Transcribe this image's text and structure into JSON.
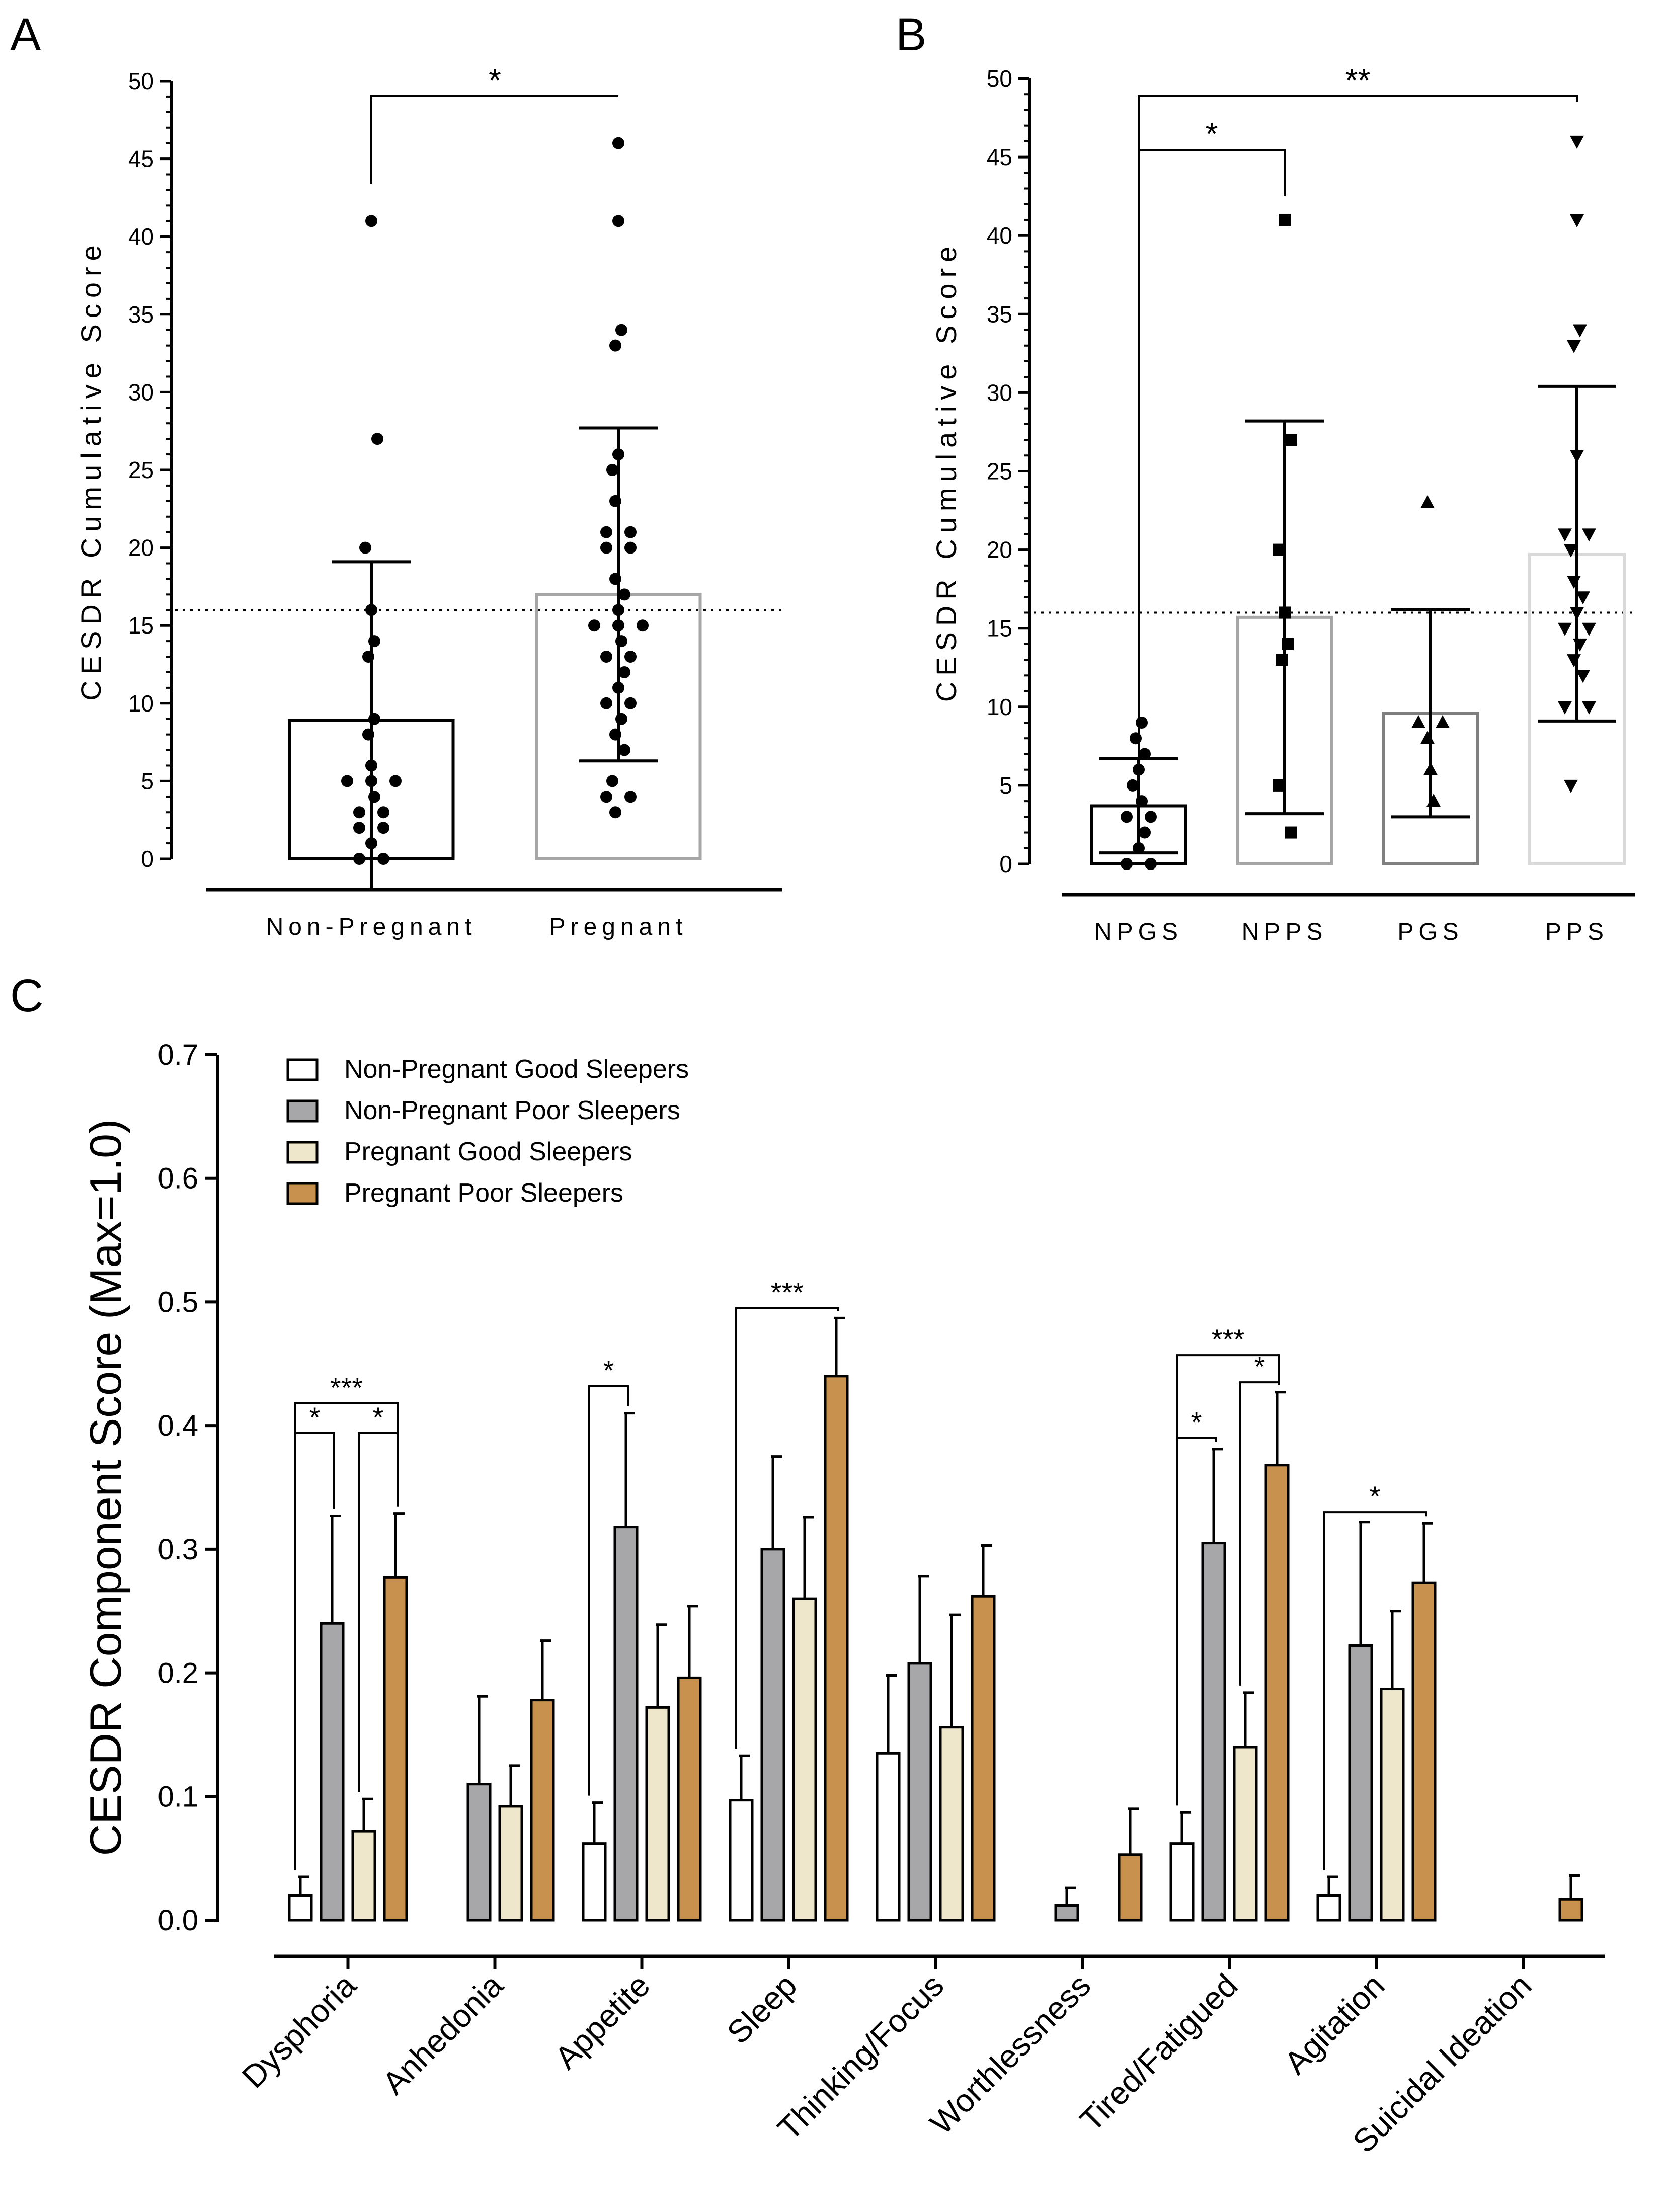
{
  "chart_data": [
    {
      "panel": "A",
      "type": "scatter",
      "title": "",
      "ylabel": "CESDR Cumulative Score",
      "xlabel": "",
      "ylim": [
        0,
        50
      ],
      "yticks": [
        0,
        5,
        10,
        15,
        20,
        25,
        30,
        35,
        40,
        45,
        50
      ],
      "threshold": 16,
      "categories": [
        "Non-Pregnant",
        "Pregnant"
      ],
      "groups": [
        {
          "name": "Non-Pregnant",
          "mean": 8.9,
          "sd_upper": 19.1,
          "sd_lower": -1.3,
          "bar_color": "#000000",
          "points": [
            41,
            27,
            20,
            16,
            14,
            13,
            9,
            8,
            6,
            5,
            5,
            5,
            4,
            3,
            3,
            2,
            2,
            1,
            0,
            0
          ]
        },
        {
          "name": "Pregnant",
          "mean": 17.0,
          "sd_upper": 27.7,
          "sd_lower": 6.3,
          "bar_color": "#a6a6a6",
          "points": [
            46,
            41,
            34,
            33,
            26,
            25,
            23,
            21,
            21,
            20,
            20,
            18,
            17,
            16,
            15,
            15,
            15,
            14,
            13,
            13,
            12,
            11,
            10,
            10,
            9,
            8,
            7,
            5,
            4,
            4,
            3
          ]
        }
      ],
      "significance": [
        {
          "from": 0,
          "to": 1,
          "label": "*"
        }
      ]
    },
    {
      "panel": "B",
      "type": "scatter",
      "title": "",
      "ylabel": "CESDR Cumulative Score",
      "xlabel": "",
      "ylim": [
        0,
        50
      ],
      "yticks": [
        0,
        5,
        10,
        15,
        20,
        25,
        30,
        35,
        40,
        45,
        50
      ],
      "threshold": 16,
      "categories": [
        "NPGS",
        "NPPS",
        "PGS",
        "PPS"
      ],
      "groups": [
        {
          "name": "NPGS",
          "mean": 3.7,
          "sd_upper": 6.7,
          "sd_lower": 0.7,
          "bar_color": "#000000",
          "marker": "circle",
          "points": [
            9,
            8,
            7,
            6,
            5,
            4,
            3,
            3,
            2,
            1,
            0,
            0
          ]
        },
        {
          "name": "NPPS",
          "mean": 15.7,
          "sd_upper": 28.2,
          "sd_lower": 3.2,
          "bar_color": "#a6a6a6",
          "marker": "square",
          "points": [
            41,
            27,
            20,
            16,
            14,
            13,
            5,
            2
          ]
        },
        {
          "name": "PGS",
          "mean": 9.6,
          "sd_upper": 16.2,
          "sd_lower": 3.0,
          "bar_color": "#7f7f7f",
          "marker": "triangle-up",
          "points": [
            23,
            9,
            9,
            8,
            6,
            4
          ]
        },
        {
          "name": "PPS",
          "mean": 19.7,
          "sd_upper": 30.4,
          "sd_lower": 9.1,
          "bar_color": "#d9d9d9",
          "marker": "triangle-down",
          "points": [
            46,
            41,
            34,
            33,
            26,
            21,
            21,
            20,
            18,
            17,
            16,
            15,
            15,
            14,
            13,
            12,
            10,
            10,
            5
          ]
        }
      ],
      "significance": [
        {
          "from": 0,
          "to": 1,
          "label": "*"
        },
        {
          "from": 0,
          "to": 3,
          "label": "**"
        }
      ]
    },
    {
      "panel": "C",
      "type": "bar",
      "title": "",
      "ylabel": "CESDR Component Score (Max=1.0)",
      "xlabel": "",
      "ylim": [
        0,
        0.7
      ],
      "yticks": [
        "0.0",
        "0.1",
        "0.2",
        "0.3",
        "0.4",
        "0.5",
        "0.6",
        "0.7"
      ],
      "categories": [
        "Dysphoria",
        "Anhedonia",
        "Appetite",
        "Sleep",
        "Thinking/Focus",
        "Worthlessness",
        "Tired/Fatigued",
        "Agitation",
        "Suicidal Ideation"
      ],
      "series": [
        {
          "name": "Non-Pregnant Good Sleepers",
          "color": "#ffffff",
          "values": [
            0.02,
            0,
            0.062,
            0.097,
            0.135,
            0,
            0.062,
            0.02,
            0
          ],
          "errors": [
            0.015,
            0,
            0.033,
            0.036,
            0.063,
            0,
            0.025,
            0.015,
            0
          ]
        },
        {
          "name": "Non-Pregnant Poor Sleepers",
          "color": "#a7a7aa",
          "values": [
            0.24,
            0.11,
            0.318,
            0.3,
            0.208,
            0.012,
            0.305,
            0.222,
            0
          ],
          "errors": [
            0.087,
            0.071,
            0.092,
            0.075,
            0.07,
            0.014,
            0.076,
            0.1,
            0
          ]
        },
        {
          "name": "Pregnant Good Sleepers",
          "color": "#efe7cc",
          "values": [
            0.072,
            0.092,
            0.172,
            0.26,
            0.156,
            0,
            0.14,
            0.187,
            0
          ],
          "errors": [
            0.026,
            0.033,
            0.067,
            0.066,
            0.091,
            0,
            0.044,
            0.063,
            0
          ]
        },
        {
          "name": "Pregnant Poor Sleepers",
          "color": "#c8914d",
          "values": [
            0.277,
            0.178,
            0.196,
            0.44,
            0.262,
            0.053,
            0.368,
            0.273,
            0.017
          ],
          "errors": [
            0.052,
            0.048,
            0.058,
            0.047,
            0.041,
            0.037,
            0.059,
            0.048,
            0.019
          ]
        }
      ],
      "significance": [
        {
          "cat": 0,
          "from": 0,
          "to": 1,
          "label": "*",
          "level": 0.394
        },
        {
          "cat": 0,
          "from": 2,
          "to": 3,
          "label": "*",
          "level": 0.394
        },
        {
          "cat": 0,
          "from": 0,
          "to": 3,
          "label": "***",
          "level": 0.418
        },
        {
          "cat": 2,
          "from": 0,
          "to": 1,
          "label": "*",
          "level": 0.432
        },
        {
          "cat": 3,
          "from": 0,
          "to": 3,
          "label": "***",
          "level": 0.495
        },
        {
          "cat": 6,
          "from": 0,
          "to": 1,
          "label": "*",
          "level": 0.39
        },
        {
          "cat": 6,
          "from": 2,
          "to": 3,
          "label": "*",
          "level": 0.435
        },
        {
          "cat": 6,
          "from": 0,
          "to": 3,
          "label": "***",
          "level": 0.457
        },
        {
          "cat": 7,
          "from": 0,
          "to": 3,
          "label": "*",
          "level": 0.33
        }
      ],
      "legend_position": "top-left"
    }
  ],
  "panels": {
    "a": "A",
    "b": "B",
    "c": "C"
  }
}
